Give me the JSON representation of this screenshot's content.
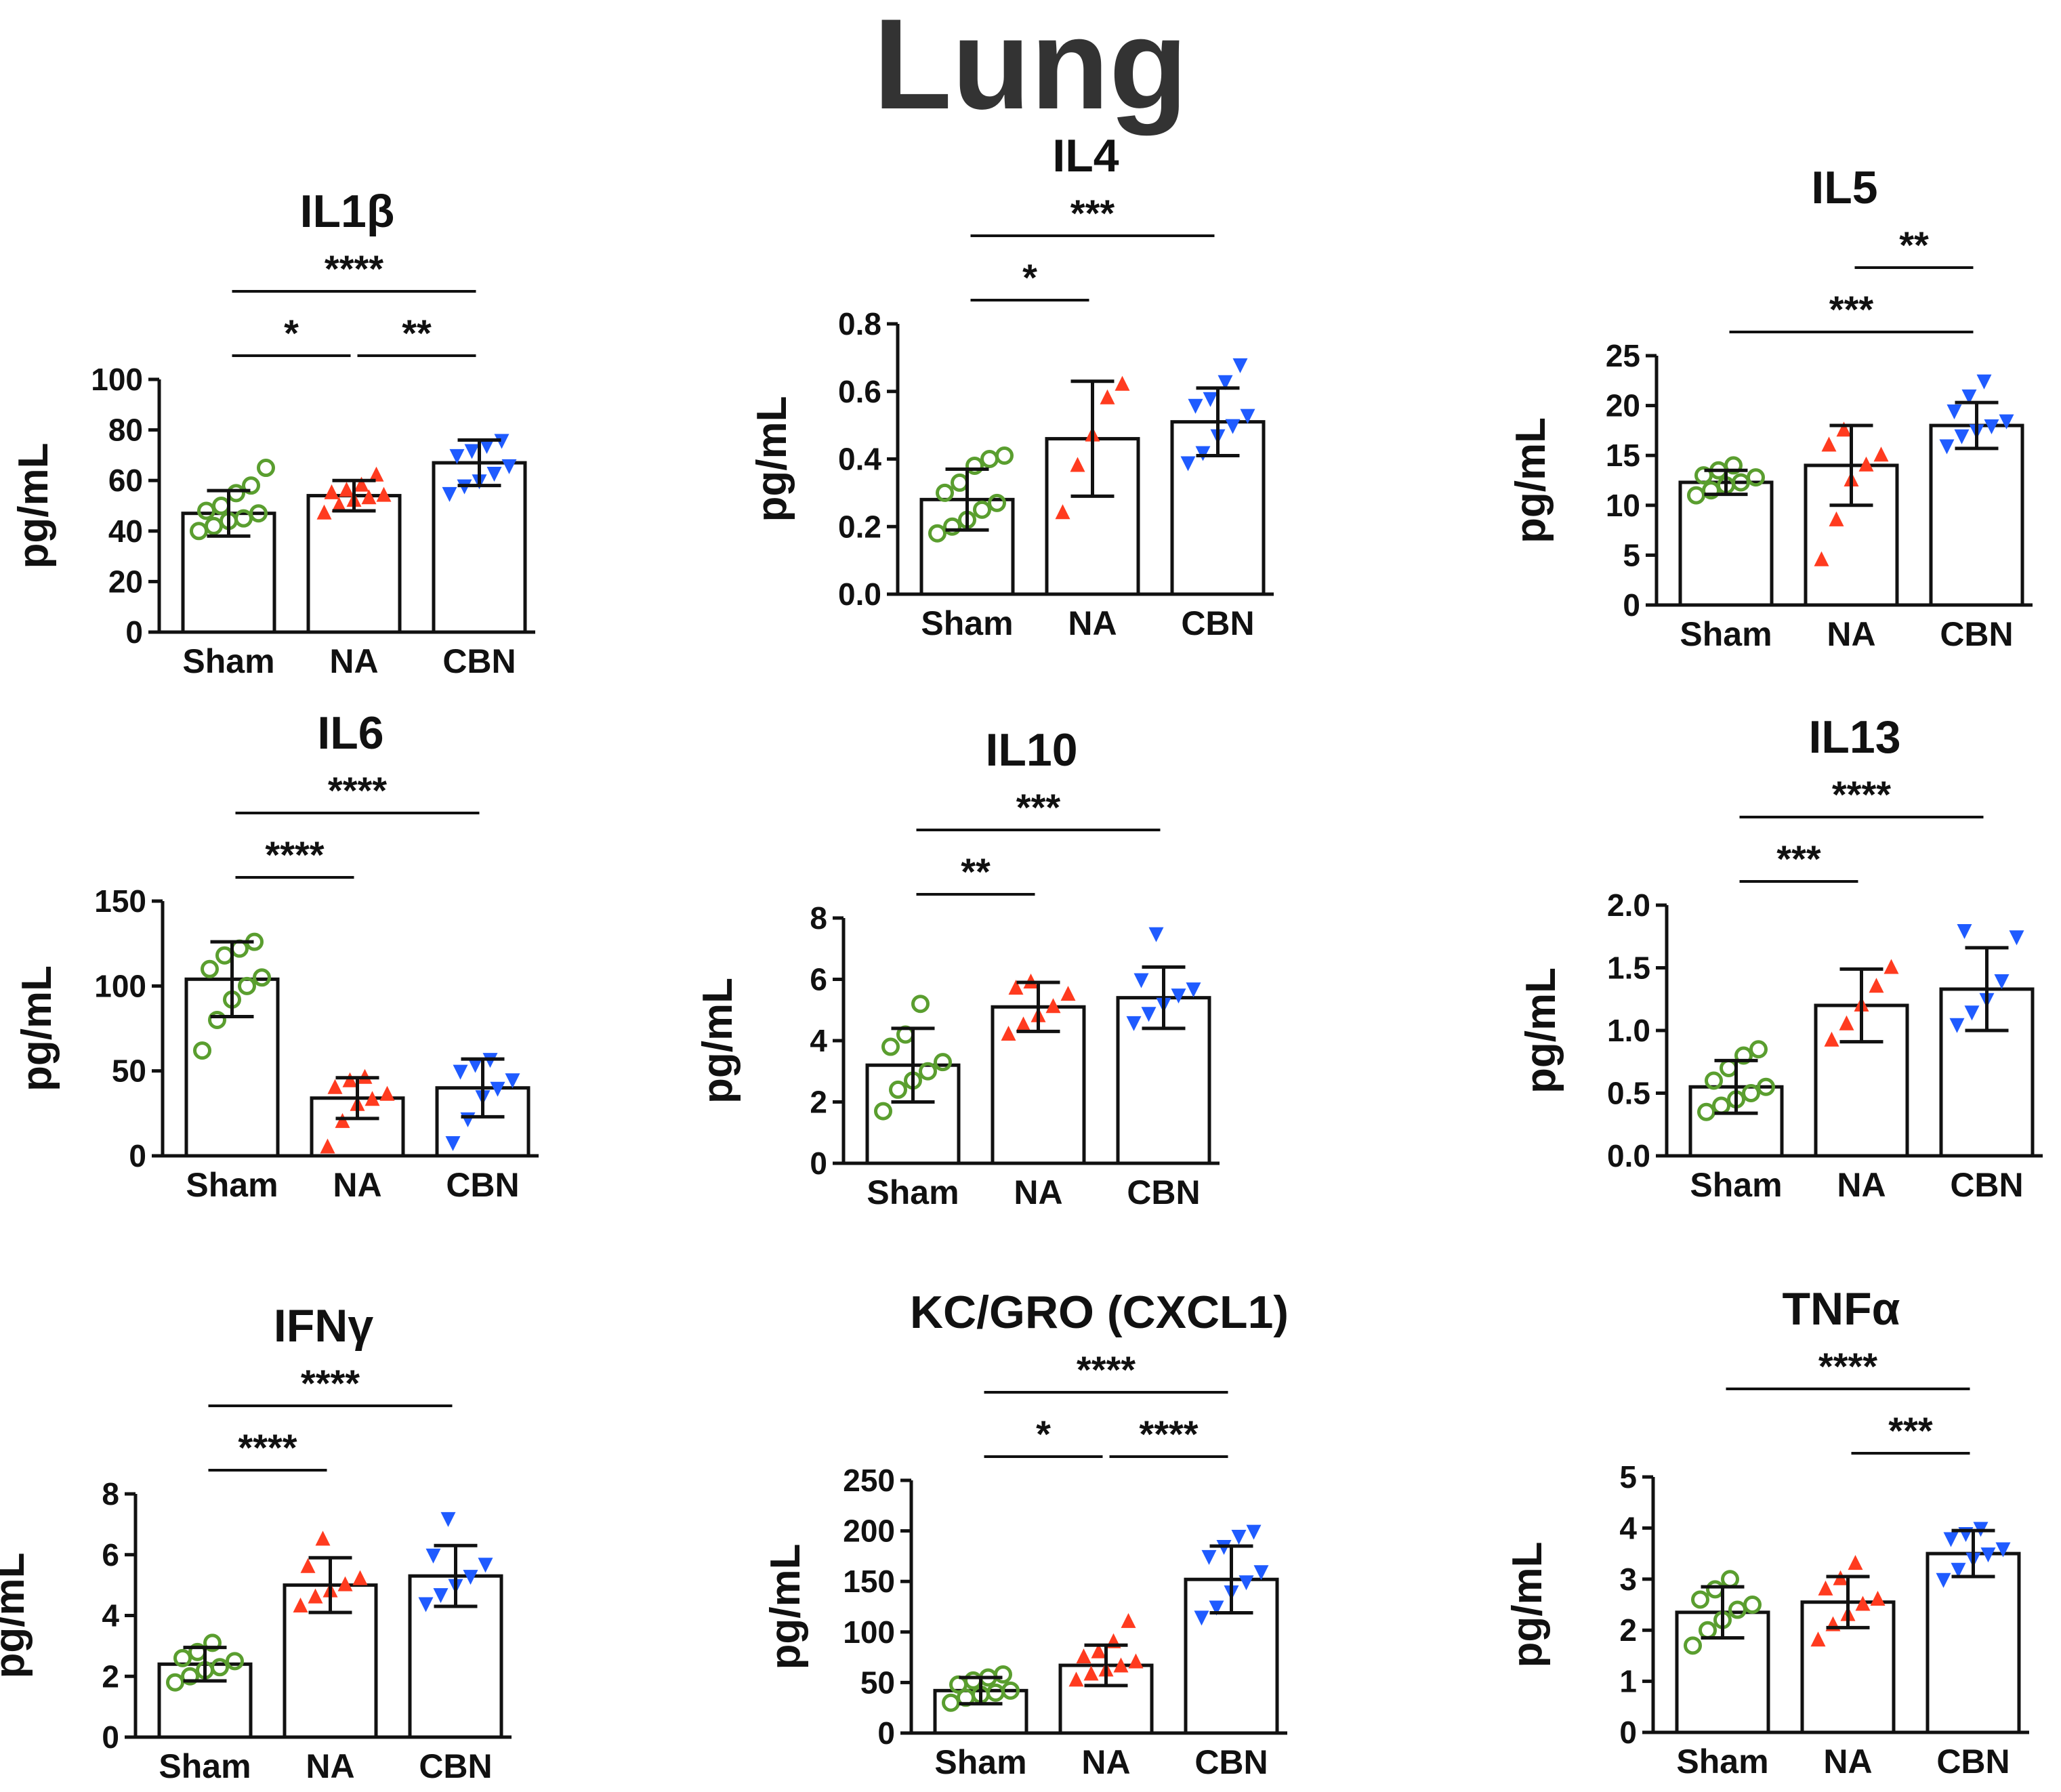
{
  "figure_title": "Lung",
  "colors": {
    "Sham": "#5a9e2f",
    "NA": "#ff3b1f",
    "CBN": "#1f5bff",
    "axis": "#111111"
  },
  "chart_data": [
    {
      "type": "bar",
      "title": "IL1β",
      "ylabel": "pg/mL",
      "categories": [
        "Sham",
        "NA",
        "CBN"
      ],
      "ylim": [
        0,
        100
      ],
      "yticks": [
        0,
        20,
        40,
        60,
        80,
        100
      ],
      "means": [
        47,
        54,
        67
      ],
      "errors": [
        9,
        6,
        9
      ],
      "points": [
        [
          40,
          42,
          44,
          45,
          47,
          48,
          50,
          55,
          58,
          65
        ],
        [
          47,
          50,
          52,
          53,
          54,
          55,
          56,
          58,
          62
        ],
        [
          55,
          58,
          60,
          63,
          66,
          70,
          72,
          74,
          76
        ]
      ],
      "significance": [
        {
          "from": 0,
          "to": 2,
          "label": "****",
          "level": 2
        },
        {
          "from": 0,
          "to": 1,
          "label": "*",
          "level": 1
        },
        {
          "from": 1,
          "to": 2,
          "label": "**",
          "level": 1
        }
      ]
    },
    {
      "type": "bar",
      "title": "IL4",
      "ylabel": "pg/mL",
      "categories": [
        "Sham",
        "NA",
        "CBN"
      ],
      "ylim": [
        0,
        0.8
      ],
      "yticks": [
        0,
        0.2,
        0.4,
        0.6,
        0.8
      ],
      "tick_labels": [
        "0.0",
        "0.2",
        "0.4",
        "0.6",
        "0.8"
      ],
      "means": [
        0.28,
        0.46,
        0.51
      ],
      "errors": [
        0.09,
        0.17,
        0.1
      ],
      "points": [
        [
          0.18,
          0.2,
          0.22,
          0.25,
          0.27,
          0.3,
          0.33,
          0.38,
          0.4,
          0.41
        ],
        [
          0.24,
          0.38,
          0.47,
          0.58,
          0.62
        ],
        [
          0.39,
          0.42,
          0.47,
          0.5,
          0.53,
          0.56,
          0.58,
          0.63,
          0.68
        ]
      ],
      "significance": [
        {
          "from": 0,
          "to": 2,
          "label": "***",
          "level": 2
        },
        {
          "from": 0,
          "to": 1,
          "label": "*",
          "level": 1
        }
      ]
    },
    {
      "type": "bar",
      "title": "IL5",
      "ylabel": "pg/mL",
      "categories": [
        "Sham",
        "NA",
        "CBN"
      ],
      "ylim": [
        0,
        25
      ],
      "yticks": [
        0,
        5,
        10,
        15,
        20,
        25
      ],
      "means": [
        12.3,
        14,
        18
      ],
      "errors": [
        1.2,
        4,
        2.3
      ],
      "points": [
        [
          11,
          11.5,
          12,
          12.3,
          12.8,
          13,
          13.5,
          14
        ],
        [
          4.5,
          8.5,
          12.5,
          14,
          15,
          16,
          17.5
        ],
        [
          16,
          17,
          17.5,
          18,
          18.5,
          19.5,
          21,
          22.5
        ]
      ],
      "significance": [
        {
          "from": 1,
          "to": 2,
          "label": "**",
          "level": 2
        },
        {
          "from": 0,
          "to": 2,
          "label": "***",
          "level": 1
        }
      ]
    },
    {
      "type": "bar",
      "title": "IL6",
      "ylabel": "pg/mL",
      "categories": [
        "Sham",
        "NA",
        "CBN"
      ],
      "ylim": [
        0,
        150
      ],
      "yticks": [
        0,
        50,
        100,
        150
      ],
      "means": [
        104,
        34,
        40
      ],
      "errors": [
        22,
        12,
        17
      ],
      "points": [
        [
          62,
          80,
          92,
          100,
          105,
          110,
          118,
          122,
          126
        ],
        [
          5,
          20,
          30,
          33,
          36,
          40,
          44,
          46
        ],
        [
          8,
          22,
          35,
          40,
          45,
          50,
          54,
          57
        ]
      ],
      "significance": [
        {
          "from": 0,
          "to": 2,
          "label": "****",
          "level": 2
        },
        {
          "from": 0,
          "to": 1,
          "label": "****",
          "level": 1
        }
      ]
    },
    {
      "type": "bar",
      "title": "IL10",
      "ylabel": "pg/mL",
      "categories": [
        "Sham",
        "NA",
        "CBN"
      ],
      "ylim": [
        0,
        8
      ],
      "yticks": [
        0,
        2,
        4,
        6,
        8
      ],
      "means": [
        3.2,
        5.1,
        5.4
      ],
      "errors": [
        1.2,
        0.8,
        1
      ],
      "points": [
        [
          1.7,
          2.4,
          2.7,
          3,
          3.3,
          3.8,
          4.2,
          5.2
        ],
        [
          4.2,
          4.5,
          4.8,
          5.1,
          5.5,
          5.7,
          5.9
        ],
        [
          4.6,
          4.9,
          5.2,
          5.5,
          5.7,
          6,
          7.5
        ]
      ],
      "significance": [
        {
          "from": 0,
          "to": 2,
          "label": "***",
          "level": 2
        },
        {
          "from": 0,
          "to": 1,
          "label": "**",
          "level": 1
        }
      ]
    },
    {
      "type": "bar",
      "title": "IL13",
      "ylabel": "pg/mL",
      "categories": [
        "Sham",
        "NA",
        "CBN"
      ],
      "ylim": [
        0,
        2
      ],
      "yticks": [
        0,
        0.5,
        1,
        1.5,
        2
      ],
      "tick_labels": [
        "0.0",
        "0.5",
        "1.0",
        "1.5",
        "2.0"
      ],
      "means": [
        0.55,
        1.2,
        1.33
      ],
      "errors": [
        0.21,
        0.29,
        0.33
      ],
      "points": [
        [
          0.35,
          0.4,
          0.45,
          0.5,
          0.55,
          0.6,
          0.7,
          0.8,
          0.85
        ],
        [
          0.92,
          1.05,
          1.2,
          1.35,
          1.5
        ],
        [
          1.05,
          1.15,
          1.25,
          1.4,
          1.75,
          1.8
        ]
      ],
      "significance": [
        {
          "from": 0,
          "to": 2,
          "label": "****",
          "level": 2
        },
        {
          "from": 0,
          "to": 1,
          "label": "***",
          "level": 1
        }
      ]
    },
    {
      "type": "bar",
      "title": "IFNγ",
      "ylabel": "pg/mL",
      "categories": [
        "Sham",
        "NA",
        "CBN"
      ],
      "ylim": [
        0,
        8
      ],
      "yticks": [
        0,
        2,
        4,
        6,
        8
      ],
      "means": [
        2.4,
        5,
        5.3
      ],
      "errors": [
        0.55,
        0.9,
        1
      ],
      "points": [
        [
          1.8,
          2,
          2.2,
          2.3,
          2.5,
          2.6,
          2.8,
          3.1
        ],
        [
          4.3,
          4.6,
          4.8,
          5,
          5.2,
          5.6,
          6.5
        ],
        [
          4.4,
          4.7,
          5,
          5.3,
          5.7,
          6,
          7.2
        ]
      ],
      "significance": [
        {
          "from": 0,
          "to": 2,
          "label": "****",
          "level": 2
        },
        {
          "from": 0,
          "to": 1,
          "label": "****",
          "level": 1
        }
      ]
    },
    {
      "type": "bar",
      "title": "KC/GRO (CXCL1)",
      "ylabel": "pg/mL",
      "categories": [
        "Sham",
        "NA",
        "CBN"
      ],
      "ylim": [
        0,
        250
      ],
      "yticks": [
        0,
        50,
        100,
        150,
        200,
        250
      ],
      "means": [
        42,
        67,
        152
      ],
      "errors": [
        13,
        20,
        33
      ],
      "points": [
        [
          30,
          35,
          38,
          40,
          42,
          48,
          52,
          55,
          58
        ],
        [
          52,
          58,
          62,
          66,
          70,
          75,
          80,
          90,
          110
        ],
        [
          115,
          125,
          140,
          150,
          160,
          175,
          185,
          195,
          200
        ]
      ],
      "significance": [
        {
          "from": 0,
          "to": 2,
          "label": "****",
          "level": 2
        },
        {
          "from": 0,
          "to": 1,
          "label": "*",
          "level": 1
        },
        {
          "from": 1,
          "to": 2,
          "label": "****",
          "level": 1
        }
      ]
    },
    {
      "type": "bar",
      "title": "TNFα",
      "ylabel": "pg/mL",
      "categories": [
        "Sham",
        "NA",
        "CBN"
      ],
      "ylim": [
        0,
        5
      ],
      "yticks": [
        0,
        1,
        2,
        3,
        4,
        5
      ],
      "means": [
        2.35,
        2.55,
        3.5
      ],
      "errors": [
        0.5,
        0.5,
        0.45
      ],
      "points": [
        [
          1.7,
          2,
          2.2,
          2.4,
          2.5,
          2.6,
          2.8,
          3
        ],
        [
          1.8,
          2.1,
          2.3,
          2.5,
          2.6,
          2.8,
          3,
          3.3
        ],
        [
          3,
          3.2,
          3.4,
          3.5,
          3.6,
          3.8,
          3.9,
          4
        ]
      ],
      "significance": [
        {
          "from": 0,
          "to": 2,
          "label": "****",
          "level": 2
        },
        {
          "from": 1,
          "to": 2,
          "label": "***",
          "level": 1
        }
      ]
    }
  ]
}
